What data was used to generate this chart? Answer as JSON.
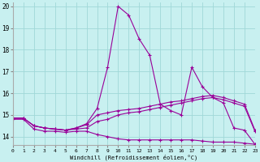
{
  "xlabel": "Windchill (Refroidissement éolien,°C)",
  "bg_color": "#c8f0f0",
  "line_color": "#990099",
  "grid_color": "#a0d8d8",
  "xlim": [
    0,
    23
  ],
  "ylim": [
    13.6,
    20.2
  ],
  "xticks": [
    0,
    1,
    2,
    3,
    4,
    5,
    6,
    7,
    8,
    9,
    10,
    11,
    12,
    13,
    14,
    15,
    16,
    17,
    18,
    19,
    20,
    21,
    22,
    23
  ],
  "yticks": [
    14,
    15,
    16,
    17,
    18,
    19,
    20
  ],
  "series": [
    {
      "x": [
        0,
        1,
        2,
        3,
        4,
        5,
        6,
        7,
        8,
        9,
        10,
        11,
        12,
        13,
        14,
        15,
        16,
        17,
        18,
        19,
        20,
        21,
        22,
        23
      ],
      "y": [
        14.8,
        14.8,
        14.35,
        14.25,
        14.25,
        14.2,
        14.25,
        14.25,
        14.1,
        14.0,
        13.9,
        13.85,
        13.85,
        13.85,
        13.85,
        13.85,
        13.85,
        13.85,
        13.8,
        13.75,
        13.75,
        13.75,
        13.7,
        13.65
      ]
    },
    {
      "x": [
        0,
        1,
        2,
        3,
        4,
        5,
        6,
        7,
        8,
        9,
        10,
        11,
        12,
        13,
        14,
        15,
        16,
        17,
        18,
        19,
        20,
        21,
        22,
        23
      ],
      "y": [
        14.85,
        14.85,
        14.5,
        14.4,
        14.35,
        14.3,
        14.35,
        14.4,
        14.7,
        14.8,
        15.0,
        15.1,
        15.15,
        15.25,
        15.35,
        15.45,
        15.55,
        15.65,
        15.75,
        15.8,
        15.7,
        15.55,
        15.4,
        14.25
      ]
    },
    {
      "x": [
        0,
        1,
        2,
        3,
        4,
        5,
        6,
        7,
        8,
        9,
        10,
        11,
        12,
        13,
        14,
        15,
        16,
        17,
        18,
        19,
        20,
        21,
        22,
        23
      ],
      "y": [
        14.85,
        14.85,
        14.5,
        14.4,
        14.35,
        14.3,
        14.4,
        14.55,
        15.0,
        15.1,
        15.2,
        15.25,
        15.3,
        15.4,
        15.5,
        15.6,
        15.65,
        15.75,
        15.85,
        15.9,
        15.8,
        15.65,
        15.5,
        14.3
      ]
    },
    {
      "x": [
        0,
        1,
        2,
        3,
        4,
        5,
        6,
        7,
        8,
        9,
        10,
        11,
        12,
        13,
        14,
        15,
        16,
        17,
        18,
        19,
        20,
        21,
        22,
        23
      ],
      "y": [
        14.85,
        14.85,
        14.5,
        14.4,
        14.35,
        14.3,
        14.4,
        14.6,
        15.3,
        17.2,
        20.0,
        19.6,
        18.5,
        17.75,
        15.5,
        15.2,
        15.0,
        17.2,
        16.3,
        15.8,
        15.55,
        14.4,
        14.3,
        13.65
      ]
    }
  ]
}
